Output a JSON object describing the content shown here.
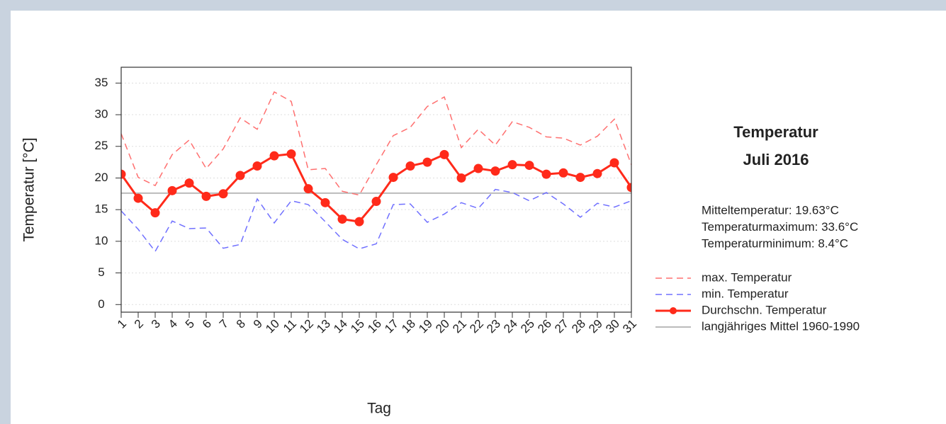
{
  "chart_data": {
    "type": "line",
    "title": "Temperatur",
    "subtitle": "Juli 2016",
    "x_label": "Tag",
    "y_label": "Temperatur [°C]",
    "annotations": [
      "Mitteltemperatur: 19.63°C",
      "Temperaturmaximum: 33.6°C",
      "Temperaturminimum: 8.4°C"
    ],
    "x": [
      1,
      2,
      3,
      4,
      5,
      6,
      7,
      8,
      9,
      10,
      11,
      12,
      13,
      14,
      15,
      16,
      17,
      18,
      19,
      20,
      21,
      22,
      23,
      24,
      25,
      26,
      27,
      28,
      29,
      30,
      31
    ],
    "series": [
      {
        "name": "max. Temperatur",
        "color": "#ff7070",
        "line_style": "dashed",
        "marker": false,
        "values": [
          27,
          20.1,
          18.8,
          23.7,
          26,
          21.5,
          24.6,
          29.5,
          27.7,
          33.6,
          32.1,
          21.3,
          21.5,
          17.9,
          17.3,
          22.1,
          26.7,
          28,
          31.3,
          32.8,
          24.8,
          27.7,
          25.2,
          28.9,
          28,
          26.5,
          26.3,
          25.2,
          26.6,
          29.3,
          22.1
        ]
      },
      {
        "name": "min. Temperatur",
        "color": "#7070ff",
        "line_style": "dashed",
        "marker": false,
        "values": [
          14.8,
          11.9,
          8.4,
          13.2,
          12,
          12.1,
          8.9,
          9.5,
          16.7,
          12.9,
          16.4,
          15.8,
          13.1,
          10.3,
          8.8,
          9.6,
          15.8,
          15.9,
          13,
          14.3,
          16.1,
          15.2,
          18.2,
          17.7,
          16.4,
          17.7,
          15.9,
          13.8,
          16,
          15.4,
          16.4
        ]
      },
      {
        "name": "Durchschn. Temperatur",
        "color": "#ff2a1a",
        "line_style": "solid",
        "marker": true,
        "values": [
          20.6,
          16.8,
          14.5,
          18,
          19.2,
          17.1,
          17.5,
          20.4,
          21.9,
          23.5,
          23.8,
          18.3,
          16.1,
          13.5,
          13.1,
          16.3,
          20.1,
          21.9,
          22.5,
          23.7,
          20,
          21.5,
          21.1,
          22.1,
          22,
          20.6,
          20.8,
          20.1,
          20.7,
          22.4,
          18.5
        ]
      }
    ],
    "hlines": [
      {
        "name": "langjähriges Mittel 1960-1990",
        "value": 17.6,
        "color": "#bbbbbb"
      }
    ],
    "xlim": [
      1,
      31
    ],
    "ylim": [
      -1.2,
      37.5
    ],
    "xticks": [
      1,
      2,
      3,
      4,
      5,
      6,
      7,
      8,
      9,
      10,
      11,
      12,
      13,
      14,
      15,
      16,
      17,
      18,
      19,
      20,
      21,
      22,
      23,
      24,
      25,
      26,
      27,
      28,
      29,
      30,
      31
    ],
    "yticks": [
      0,
      5,
      10,
      15,
      20,
      25,
      30,
      35
    ],
    "grid": true
  }
}
